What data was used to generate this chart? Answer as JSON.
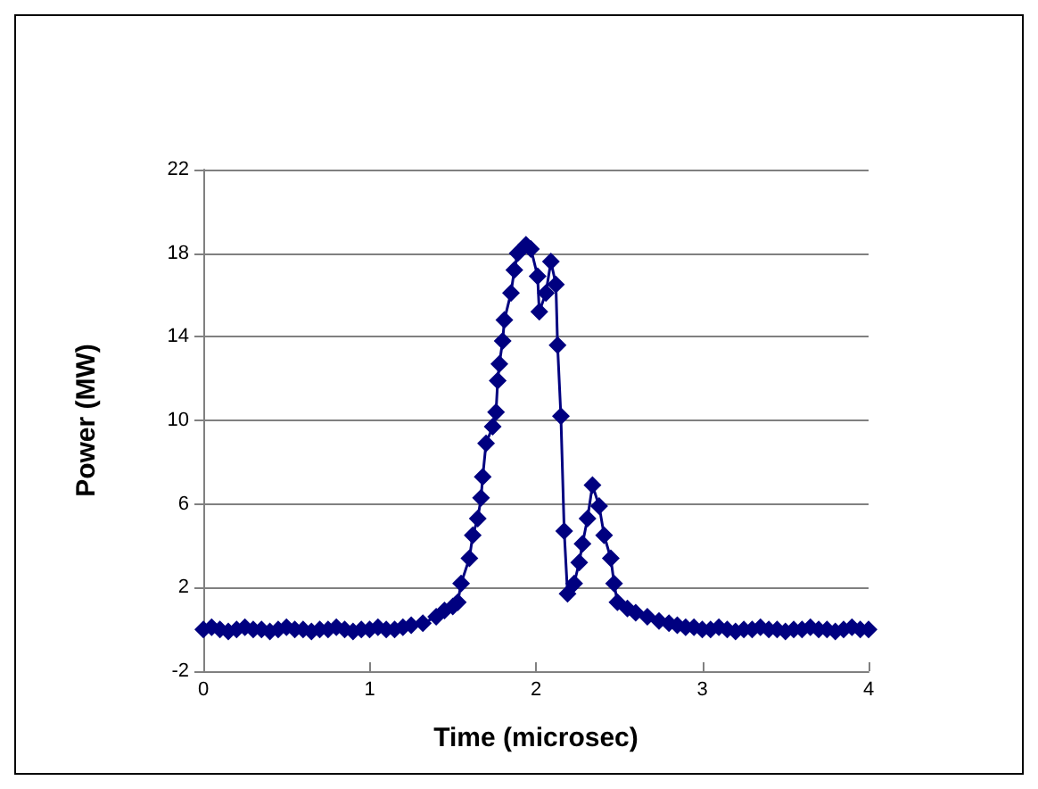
{
  "chart_data": {
    "type": "line",
    "xlabel": "Time (microsec)",
    "ylabel": "Power (MW)",
    "xlim": [
      0,
      4
    ],
    "xticks": [
      0,
      1,
      2,
      3,
      4
    ],
    "ylim": [
      -2,
      22
    ],
    "yticks": [
      -2,
      2,
      6,
      10,
      14,
      18,
      22
    ],
    "grid": "y",
    "marker": "diamond",
    "line_style": "solid",
    "series": [
      {
        "color": "#000080",
        "x": [
          0,
          0.05,
          0.1,
          0.15,
          0.2,
          0.25,
          0.3,
          0.35,
          0.4,
          0.45,
          0.5,
          0.55,
          0.6,
          0.65,
          0.7,
          0.75,
          0.8,
          0.85,
          0.9,
          0.95,
          1,
          1.05,
          1.1,
          1.15,
          1.2,
          1.25,
          1.32,
          1.4,
          1.45,
          1.5,
          1.53,
          1.55,
          1.6,
          1.62,
          1.65,
          1.67,
          1.68,
          1.7,
          1.74,
          1.76,
          1.77,
          1.78,
          1.8,
          1.81,
          1.85,
          1.87,
          1.89,
          1.94,
          1.97,
          2.01,
          2.02,
          2.06,
          2.09,
          2.12,
          2.13,
          2.15,
          2.17,
          2.19,
          2.23,
          2.26,
          2.28,
          2.31,
          2.34,
          2.38,
          2.41,
          2.45,
          2.47,
          2.49,
          2.55,
          2.6,
          2.67,
          2.74,
          2.8,
          2.85,
          2.9,
          2.95,
          3,
          3.05,
          3.1,
          3.15,
          3.2,
          3.25,
          3.3,
          3.35,
          3.4,
          3.45,
          3.5,
          3.55,
          3.6,
          3.65,
          3.7,
          3.75,
          3.8,
          3.85,
          3.9,
          3.95,
          4
        ],
        "values": [
          0,
          0.1,
          0,
          -0.1,
          0,
          0.1,
          0,
          0,
          -0.1,
          0,
          0.1,
          0,
          0,
          -0.1,
          0,
          0,
          0.1,
          0,
          -0.1,
          0,
          0,
          0.1,
          0,
          0,
          0.1,
          0.2,
          0.3,
          0.6,
          0.9,
          1.1,
          1.3,
          2.2,
          3.4,
          4.5,
          5.3,
          6.3,
          7.3,
          8.9,
          9.7,
          10.4,
          11.9,
          12.7,
          13.8,
          14.8,
          16.1,
          17.2,
          18,
          18.4,
          18.2,
          16.9,
          15.2,
          16.1,
          17.6,
          16.5,
          13.6,
          10.2,
          4.7,
          1.7,
          2.2,
          3.2,
          4.1,
          5.3,
          6.9,
          5.9,
          4.5,
          3.4,
          2.2,
          1.3,
          1,
          0.8,
          0.6,
          0.4,
          0.3,
          0.2,
          0.1,
          0.1,
          0,
          0,
          0.1,
          0,
          -0.1,
          0,
          0,
          0.1,
          0,
          0,
          -0.1,
          0,
          0,
          0.1,
          0,
          0,
          -0.1,
          0,
          0.1,
          0,
          0
        ]
      }
    ]
  }
}
